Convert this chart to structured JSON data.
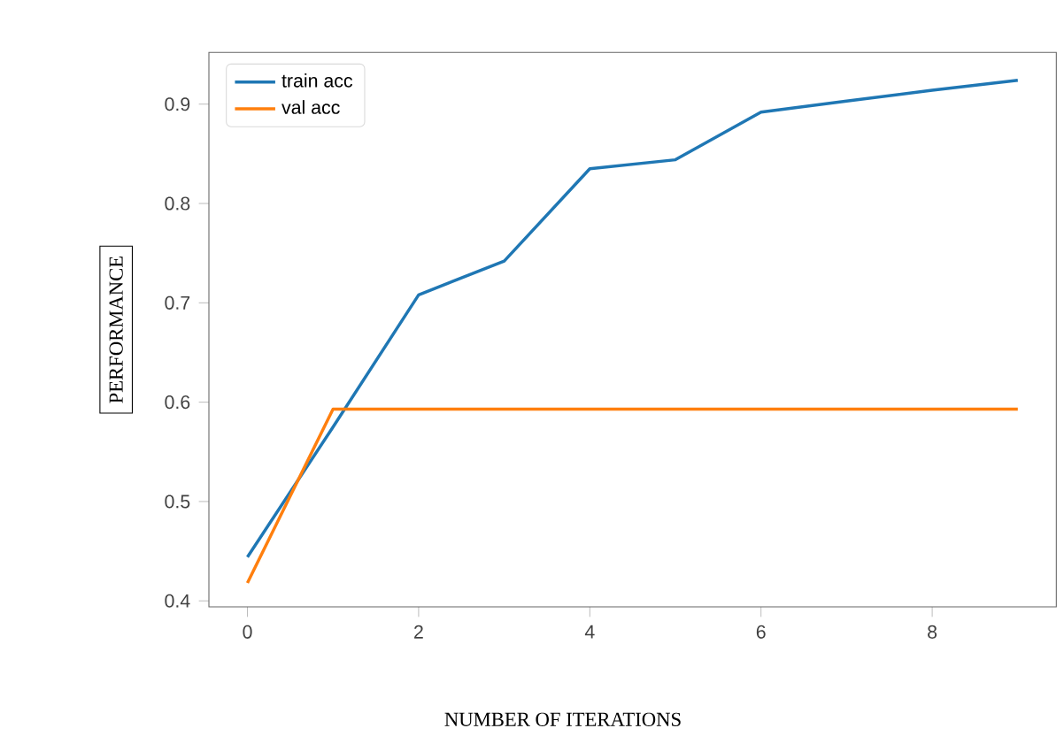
{
  "chart_data": {
    "type": "line",
    "xlabel": "NUMBER OF ITERATIONS",
    "ylabel": "PERFORMANCE",
    "x": [
      0,
      1,
      2,
      3,
      4,
      5,
      6,
      7,
      8,
      9
    ],
    "series": [
      {
        "name": "train acc",
        "color": "#1f77b4",
        "values": [
          0.444,
          0.575,
          0.708,
          0.742,
          0.835,
          0.844,
          0.892,
          0.903,
          0.914,
          0.924
        ]
      },
      {
        "name": "val acc",
        "color": "#ff7f0e",
        "values": [
          0.418,
          0.593,
          0.593,
          0.593,
          0.593,
          0.593,
          0.593,
          0.593,
          0.593,
          0.593
        ]
      }
    ],
    "xlim": [
      -0.45,
      9.45
    ],
    "ylim": [
      0.394,
      0.952
    ],
    "xticks": [
      0,
      2,
      4,
      6,
      8
    ],
    "yticks": [
      0.4,
      0.5,
      0.6,
      0.7,
      0.8,
      0.9
    ],
    "legend": "top left"
  }
}
